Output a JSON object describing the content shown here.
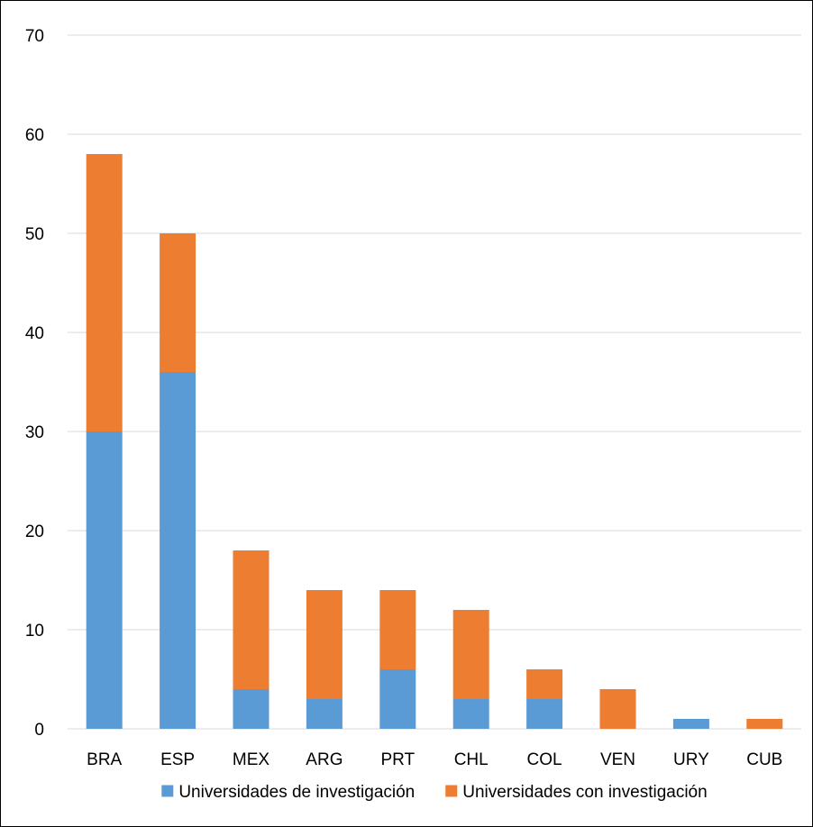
{
  "chart_data": {
    "type": "bar",
    "stacked": true,
    "title": "",
    "xlabel": "",
    "ylabel": "",
    "categories": [
      "BRA",
      "ESP",
      "MEX",
      "ARG",
      "PRT",
      "CHL",
      "COL",
      "VEN",
      "URY",
      "CUB"
    ],
    "series": [
      {
        "name": "Universidades de investigación",
        "color": "#5B9BD5",
        "values": [
          30,
          36,
          4,
          3,
          6,
          3,
          3,
          0,
          1,
          0
        ]
      },
      {
        "name": "Universidades con investigación",
        "color": "#ED7D31",
        "values": [
          28,
          14,
          14,
          11,
          8,
          9,
          3,
          4,
          0,
          1
        ]
      }
    ],
    "ylim": [
      0,
      70
    ],
    "yticks": [
      0,
      10,
      20,
      30,
      40,
      50,
      60,
      70
    ],
    "grid": true,
    "legend_position": "bottom"
  }
}
